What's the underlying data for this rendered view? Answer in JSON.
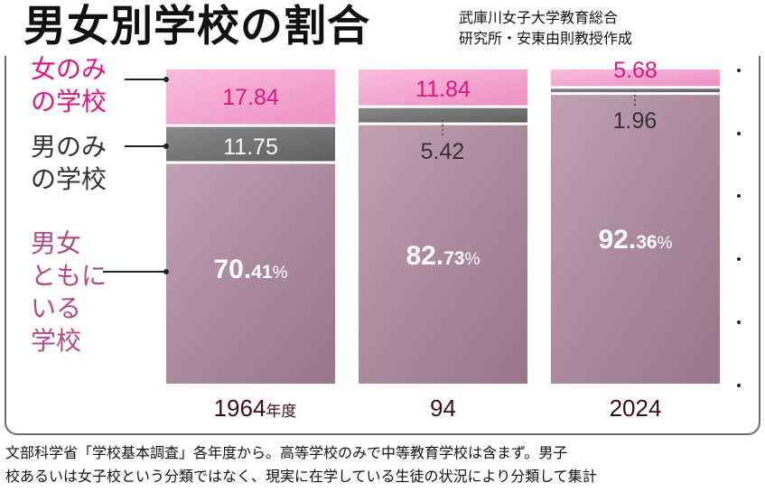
{
  "title": "男女別学校の割合",
  "source": [
    "武庫川女子大学教育総合",
    "研究所・安東由則教授作成"
  ],
  "footnote": [
    "文部科学省「学校基本調査」各年度から。高等学校のみで中等教育学校は含まず。男子",
    "校あるいは女子校という分類ではなく、現実に在学している生徒の状況により分類して集計"
  ],
  "chart_data": {
    "type": "bar",
    "stacked": true,
    "normalized_percent": true,
    "categories": [
      "1964",
      "94",
      "2024"
    ],
    "category_suffix": "年度",
    "unit": "%",
    "series": [
      {
        "name": "男女ともにいる学校",
        "legend_lines": [
          "男女",
          "ともに",
          "いる",
          "学校"
        ],
        "values": [
          70.41,
          82.73,
          92.36
        ],
        "color": "#ae8a9e"
      },
      {
        "name": "男のみの学校",
        "legend_lines": [
          "男のみ",
          "の学校"
        ],
        "values": [
          11.75,
          5.42,
          1.96
        ],
        "color": "#747474"
      },
      {
        "name": "女のみの学校",
        "legend_lines": [
          "女のみ",
          "の学校"
        ],
        "values": [
          17.84,
          11.84,
          5.68
        ],
        "color": "#f4a3cf"
      }
    ],
    "value_labels": {
      "coed": [
        "70.41",
        "82.73",
        "92.36"
      ],
      "boys": [
        "11.75",
        "5.42",
        "1.96"
      ],
      "girls": [
        "17.84",
        "11.84",
        "5.68"
      ]
    },
    "label_colors": {
      "coed": "#ffffff",
      "boys": "#333333",
      "boys_inside": "#ffffff",
      "girls": "#e0157f",
      "legend_girls": "#e0157f",
      "legend_boys": "#333333",
      "legend_coed": "#b04a86",
      "year": "#3b0b20"
    },
    "ylim": [
      0,
      100
    ]
  }
}
